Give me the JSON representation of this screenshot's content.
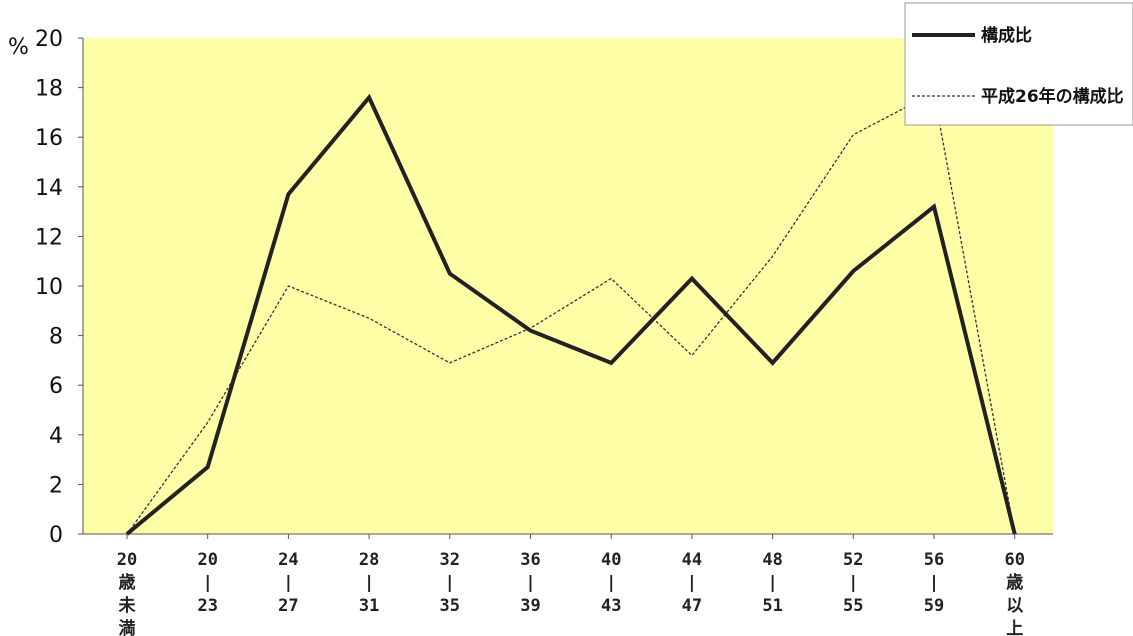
{
  "chart_data": {
    "type": "line",
    "y_unit": "%",
    "ylim": [
      0,
      20
    ],
    "y_ticks": [
      0,
      2,
      4,
      6,
      8,
      10,
      12,
      14,
      16,
      18,
      20
    ],
    "categories": [
      [
        "20",
        "歳",
        "未",
        "満"
      ],
      [
        "20",
        "|",
        "23"
      ],
      [
        "24",
        "|",
        "27"
      ],
      [
        "28",
        "|",
        "31"
      ],
      [
        "32",
        "|",
        "35"
      ],
      [
        "36",
        "|",
        "39"
      ],
      [
        "40",
        "|",
        "43"
      ],
      [
        "44",
        "|",
        "47"
      ],
      [
        "48",
        "|",
        "51"
      ],
      [
        "52",
        "|",
        "55"
      ],
      [
        "56",
        "|",
        "59"
      ],
      [
        "60",
        "歳",
        "以",
        "上"
      ]
    ],
    "series": [
      {
        "name": "構成比",
        "style": "solid",
        "color": "#222222",
        "values": [
          0,
          2.7,
          13.7,
          17.6,
          10.5,
          8.2,
          6.9,
          10.3,
          6.9,
          10.6,
          13.2,
          0
        ]
      },
      {
        "name": "平成26年の構成比",
        "style": "dashed",
        "color": "#333333",
        "values": [
          0,
          4.5,
          10.0,
          8.7,
          6.9,
          8.3,
          10.3,
          7.2,
          11.2,
          16.1,
          17.8,
          0
        ]
      }
    ],
    "legend_position": "top-right",
    "grid": false,
    "plot_background": "#ffffa8"
  }
}
